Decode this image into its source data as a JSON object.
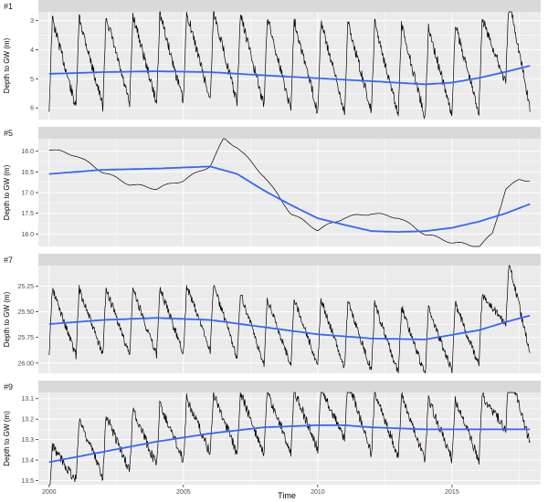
{
  "figure": {
    "xlabel": "Time",
    "ylabel": "Depth to GW (m)",
    "x_ticks": [
      "2000",
      "2005",
      "2010",
      "2015"
    ],
    "colors": {
      "strip_bg": "#d9d9d9",
      "panel_bg": "#ebebeb",
      "grid": "#ffffff",
      "observed_line": "#000000",
      "smooth_line": "#3366ff",
      "text": "#4d4d4d"
    }
  },
  "chart_data": [
    {
      "type": "line",
      "title": "#1",
      "xlim": [
        1999.6,
        2018.3
      ],
      "ylim": [
        2.7,
        6.4
      ],
      "y_reversed": true,
      "y_ticks": [
        "3",
        "4",
        "5",
        "6"
      ],
      "y_tick_values": [
        3,
        4,
        5,
        6
      ],
      "grid": true,
      "seasonal": {
        "start": 2000.0,
        "end": 2017.9,
        "period": 1.0,
        "min": 2.8,
        "max": 5.9,
        "noise": 0.18
      },
      "observed": {
        "x": [
          2000.0,
          2002.0,
          2004.0,
          2006.0,
          2008.0,
          2010.0,
          2012.0,
          2014.0,
          2016.0,
          2017.0,
          2017.9
        ],
        "y": [
          4.5,
          4.4,
          4.3,
          4.2,
          4.4,
          4.6,
          4.6,
          4.8,
          4.6,
          3.6,
          4.8
        ]
      },
      "smooth": {
        "x": [
          2000,
          2002,
          2004,
          2006,
          2008,
          2010,
          2012,
          2014,
          2015,
          2016,
          2017,
          2018
        ],
        "y": [
          4.83,
          4.77,
          4.74,
          4.77,
          4.88,
          4.98,
          5.08,
          5.19,
          5.13,
          4.97,
          4.76,
          4.53
        ]
      }
    },
    {
      "type": "line",
      "title": "#5",
      "xlim": [
        1999.6,
        2018.3
      ],
      "ylim": [
        15.7,
        18.3
      ],
      "y_reversed": true,
      "y_ticks": [
        "16.0",
        "16.5",
        "17.0",
        "17.5",
        "18.0"
      ],
      "y_tick_values": [
        16.0,
        16.5,
        17.0,
        17.5,
        18.0
      ],
      "grid": true,
      "seasonal": {
        "start": 2000.0,
        "end": 2017.9,
        "period": 1.0,
        "min": 0,
        "max": 0,
        "noise": 0.0
      },
      "observed": {
        "x": [
          2000.0,
          2001.0,
          2002.0,
          2003.0,
          2004.0,
          2005.0,
          2006.0,
          2006.5,
          2007.0,
          2008.0,
          2009.0,
          2010.0,
          2011.0,
          2012.0,
          2013.0,
          2014.0,
          2015.0,
          2016.0,
          2016.5,
          2017.0,
          2017.5,
          2017.9
        ],
        "y": [
          15.95,
          16.1,
          16.5,
          16.8,
          16.9,
          16.7,
          16.35,
          15.7,
          15.9,
          16.6,
          17.5,
          17.9,
          17.6,
          17.5,
          17.6,
          18.0,
          18.2,
          18.3,
          18.0,
          16.9,
          16.7,
          16.7
        ]
      },
      "smooth": {
        "x": [
          2000,
          2002,
          2004,
          2006,
          2007,
          2008,
          2009,
          2010,
          2011,
          2012,
          2013,
          2014,
          2015,
          2016,
          2017,
          2018
        ],
        "y": [
          16.55,
          16.45,
          16.42,
          16.37,
          16.55,
          16.95,
          17.3,
          17.62,
          17.78,
          17.93,
          17.95,
          17.93,
          17.85,
          17.7,
          17.5,
          17.25
        ]
      }
    },
    {
      "type": "line",
      "title": "#7",
      "xlim": [
        1999.6,
        2018.3
      ],
      "ylim": [
        25.05,
        26.1
      ],
      "y_reversed": true,
      "y_ticks": [
        "25.25",
        "25.50",
        "25.75",
        "26.00"
      ],
      "y_tick_values": [
        25.25,
        25.5,
        25.75,
        26.0
      ],
      "grid": true,
      "seasonal": {
        "start": 2000.0,
        "end": 2017.9,
        "period": 1.0,
        "min": 25.3,
        "max": 25.95,
        "noise": 0.04
      },
      "observed": {
        "x": [
          2000.0,
          2002.0,
          2004.0,
          2006.0,
          2008.0,
          2010.0,
          2012.0,
          2014.0,
          2016.0,
          2017.0,
          2017.9
        ],
        "y": [
          25.6,
          25.6,
          25.6,
          25.55,
          25.7,
          25.7,
          25.75,
          25.8,
          25.7,
          25.3,
          25.65
        ]
      },
      "smooth": {
        "x": [
          2000,
          2002,
          2004,
          2006,
          2008,
          2010,
          2012,
          2014,
          2016,
          2017,
          2018
        ],
        "y": [
          25.62,
          25.58,
          25.56,
          25.58,
          25.65,
          25.72,
          25.76,
          25.77,
          25.68,
          25.6,
          25.53
        ]
      }
    },
    {
      "type": "line",
      "title": "#9",
      "xlim": [
        1999.6,
        2018.3
      ],
      "ylim": [
        13.07,
        13.52
      ],
      "y_reversed": true,
      "y_ticks": [
        "13.1",
        "13.2",
        "13.3",
        "13.4",
        "13.5"
      ],
      "y_tick_values": [
        13.1,
        13.2,
        13.3,
        13.4,
        13.5
      ],
      "grid": true,
      "seasonal": {
        "start": 2000.0,
        "end": 2017.9,
        "period": 1.0,
        "min": 13.12,
        "max": 13.42,
        "noise": 0.025
      },
      "observed": {
        "x": [
          2000.0,
          2001.0,
          2002.0,
          2004.0,
          2006.0,
          2008.0,
          2010.0,
          2011.0,
          2012.0,
          2014.0,
          2016.0,
          2017.0,
          2017.9
        ],
        "y": [
          13.5,
          13.35,
          13.33,
          13.28,
          13.22,
          13.22,
          13.2,
          13.15,
          13.22,
          13.25,
          13.25,
          13.1,
          13.2
        ]
      },
      "smooth": {
        "x": [
          2000,
          2002,
          2004,
          2006,
          2008,
          2010,
          2011,
          2012,
          2014,
          2016,
          2018
        ],
        "y": [
          13.41,
          13.36,
          13.31,
          13.27,
          13.24,
          13.23,
          13.23,
          13.24,
          13.25,
          13.25,
          13.25
        ]
      }
    }
  ]
}
